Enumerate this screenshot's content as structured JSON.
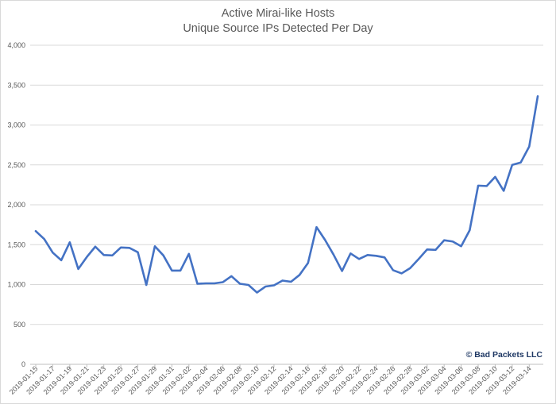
{
  "chart_data": {
    "type": "line",
    "title": "Active Mirai-like Hosts",
    "subtitle": "Unique Source IPs Detected Per Day",
    "xlabel": "",
    "ylabel": "",
    "ylim": [
      0,
      4000
    ],
    "yticks": [
      0,
      500,
      1000,
      1500,
      2000,
      2500,
      3000,
      3500,
      4000
    ],
    "ytick_labels": [
      "0",
      "500",
      "1,000",
      "1,500",
      "2,000",
      "2,500",
      "3,000",
      "3,500",
      "4,000"
    ],
    "grid": "horizontal",
    "legend": "none",
    "line_color": "#4472c4",
    "x": [
      "2019-01-15",
      "2019-01-16",
      "2019-01-17",
      "2019-01-18",
      "2019-01-19",
      "2019-01-20",
      "2019-01-21",
      "2019-01-22",
      "2019-01-23",
      "2019-01-24",
      "2019-01-25",
      "2019-01-26",
      "2019-01-27",
      "2019-01-28",
      "2019-01-29",
      "2019-01-30",
      "2019-01-31",
      "2019-02-01",
      "2019-02-02",
      "2019-02-03",
      "2019-02-04",
      "2019-02-05",
      "2019-02-06",
      "2019-02-07",
      "2019-02-08",
      "2019-02-09",
      "2019-02-10",
      "2019-02-11",
      "2019-02-12",
      "2019-02-13",
      "2019-02-14",
      "2019-02-15",
      "2019-02-16",
      "2019-02-17",
      "2019-02-18",
      "2019-02-19",
      "2019-02-20",
      "2019-02-21",
      "2019-02-22",
      "2019-02-23",
      "2019-02-24",
      "2019-02-25",
      "2019-02-26",
      "2019-02-27",
      "2019-02-28",
      "2019-03-01",
      "2019-03-02",
      "2019-03-03",
      "2019-03-04",
      "2019-03-05",
      "2019-03-06",
      "2019-03-07",
      "2019-03-08",
      "2019-03-09",
      "2019-03-10",
      "2019-03-11",
      "2019-03-12",
      "2019-03-13",
      "2019-03-14",
      "2019-03-15"
    ],
    "xtick_labels": [
      "2019-01-15",
      "2019-01-17",
      "2019-01-19",
      "2019-01-21",
      "2019-01-23",
      "2019-01-25",
      "2019-01-27",
      "2019-01-29",
      "2019-01-31",
      "2019-02-02",
      "2019-02-04",
      "2019-02-06",
      "2019-02-08",
      "2019-02-10",
      "2019-02-12",
      "2019-02-14",
      "2019-02-16",
      "2019-02-18",
      "2019-02-20",
      "2019-02-22",
      "2019-02-24",
      "2019-02-26",
      "2019-02-28",
      "2019-03-02",
      "2019-03-04",
      "2019-03-06",
      "2019-03-08",
      "2019-03-10",
      "2019-03-12",
      "2019-03-14"
    ],
    "values": [
      1670,
      1570,
      1400,
      1305,
      1530,
      1195,
      1345,
      1475,
      1370,
      1365,
      1465,
      1460,
      1405,
      995,
      1480,
      1365,
      1175,
      1175,
      1385,
      1010,
      1015,
      1015,
      1030,
      1105,
      1010,
      995,
      900,
      975,
      990,
      1050,
      1035,
      1120,
      1270,
      1720,
      1560,
      1375,
      1170,
      1390,
      1320,
      1370,
      1360,
      1340,
      1180,
      1140,
      1205,
      1320,
      1440,
      1435,
      1555,
      1540,
      1480,
      1680,
      2240,
      2235,
      2350,
      2175,
      2500,
      2530,
      2730,
      3360
    ]
  },
  "credit": "© Bad Packets LLC"
}
